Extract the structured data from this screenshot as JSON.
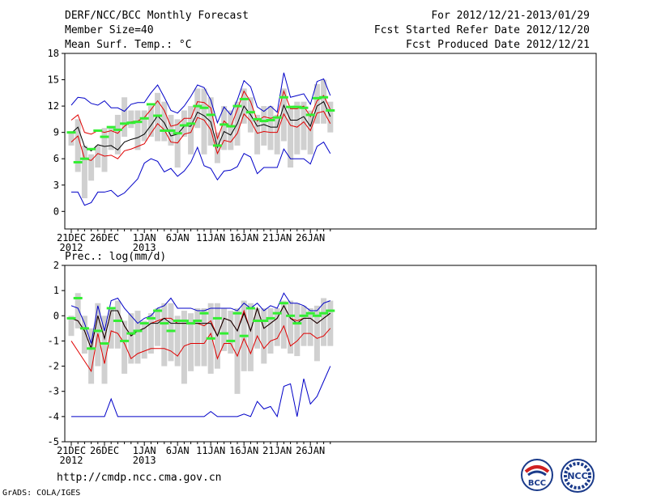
{
  "header": {
    "title": "DERF/NCC/BCC Monthly Forecast",
    "member_size": "Member Size=40",
    "variable": "Mean Surf. Temp.: °C",
    "period": "For 2012/12/21-2013/01/29",
    "started": "Fcst Started Refer Date 2012/12/20",
    "produced": "Fcst Produced Date 2012/12/21"
  },
  "footer": {
    "url": "http://cmdp.ncc.cma.gov.cn",
    "credit": "GrADS: COLA/IGES",
    "logo_left_text": "BCC",
    "logo_right_text": "NCC"
  },
  "colors": {
    "box": "#d0d0d0",
    "ensemble_mean": "#000000",
    "spread": "#e00000",
    "extremes": "#0000c8",
    "observed": "#33ee33"
  },
  "chart_data": [
    {
      "type": "box-whisker-line",
      "title": "Mean Surf. Temp.: °C",
      "x_ticks": [
        {
          "day": 0,
          "label": "21DEC",
          "sub": "2012"
        },
        {
          "day": 5,
          "label": "26DEC",
          "sub": ""
        },
        {
          "day": 11,
          "label": "1JAN",
          "sub": "2013"
        },
        {
          "day": 16,
          "label": "6JAN",
          "sub": ""
        },
        {
          "day": 21,
          "label": "11JAN",
          "sub": ""
        },
        {
          "day": 26,
          "label": "16JAN",
          "sub": ""
        },
        {
          "day": 31,
          "label": "21JAN",
          "sub": ""
        },
        {
          "day": 36,
          "label": "26JAN",
          "sub": ""
        }
      ],
      "ylim": [
        -2,
        18
      ],
      "y_ticks": [
        0,
        3,
        6,
        9,
        12,
        15,
        18
      ],
      "max": [
        12.1,
        13.0,
        12.9,
        12.3,
        12.1,
        12.6,
        11.8,
        11.8,
        11.4,
        12.2,
        12.4,
        12.4,
        13.5,
        14.4,
        13.0,
        11.5,
        11.2,
        12.0,
        13.1,
        14.4,
        14.1,
        12.7,
        10.1,
        11.9,
        11.0,
        12.7,
        14.9,
        14.2,
        11.9,
        11.4,
        12.0,
        11.3,
        15.8,
        13.0,
        13.2,
        13.4,
        12.2,
        14.8,
        15.1,
        13.2
      ],
      "upper": [
        10.4,
        11.0,
        9.0,
        8.8,
        9.2,
        9.0,
        9.2,
        8.9,
        9.7,
        10.2,
        10.3,
        10.7,
        11.6,
        12.6,
        11.5,
        9.7,
        9.9,
        10.6,
        10.6,
        12.5,
        12.4,
        11.8,
        8.3,
        10.3,
        9.6,
        11.6,
        13.7,
        12.5,
        10.3,
        10.8,
        10.6,
        10.8,
        13.7,
        11.7,
        11.7,
        12.0,
        10.8,
        12.6,
        13.2,
        11.6
      ],
      "mean": [
        8.9,
        9.6,
        7.4,
        6.9,
        7.6,
        7.4,
        7.5,
        7.0,
        7.9,
        8.2,
        8.4,
        8.8,
        9.8,
        10.9,
        10.1,
        8.6,
        8.8,
        9.7,
        9.7,
        11.3,
        10.9,
        10.2,
        7.3,
        9.1,
        8.7,
        10.0,
        12.0,
        11.0,
        9.7,
        9.9,
        9.6,
        9.6,
        12.1,
        10.4,
        10.4,
        10.8,
        9.7,
        12.0,
        12.5,
        10.8
      ],
      "lower": [
        7.9,
        8.6,
        6.0,
        5.8,
        6.6,
        6.3,
        6.4,
        6.0,
        6.9,
        7.1,
        7.4,
        7.7,
        8.9,
        10.0,
        9.3,
        7.9,
        7.8,
        8.8,
        9.0,
        10.7,
        10.4,
        9.3,
        6.6,
        8.1,
        7.9,
        8.9,
        11.1,
        10.3,
        8.9,
        9.1,
        9.0,
        9.0,
        11.1,
        9.8,
        9.6,
        10.2,
        9.2,
        11.2,
        11.4,
        10.0
      ],
      "min": [
        2.2,
        2.2,
        0.7,
        1.0,
        2.2,
        2.2,
        2.4,
        1.7,
        2.1,
        2.9,
        3.7,
        5.5,
        6.0,
        5.7,
        4.5,
        4.9,
        4.0,
        4.6,
        5.6,
        7.3,
        5.2,
        4.9,
        3.6,
        4.6,
        4.7,
        5.1,
        6.6,
        6.2,
        4.3,
        5.0,
        5.0,
        5.0,
        7.1,
        6.0,
        6.0,
        6.0,
        5.4,
        7.4,
        7.9,
        6.6
      ],
      "box_high": [
        9.0,
        10.5,
        7.5,
        6.5,
        7.5,
        9.5,
        9.5,
        11.0,
        13.0,
        11.5,
        11.5,
        11.5,
        12.0,
        13.5,
        12.5,
        11.0,
        10.5,
        11.5,
        12.0,
        14.0,
        14.0,
        13.0,
        9.0,
        12.0,
        11.5,
        12.5,
        14.0,
        13.0,
        11.0,
        12.0,
        12.0,
        11.0,
        14.0,
        12.0,
        12.5,
        12.5,
        11.5,
        14.5,
        15.0,
        12.5
      ],
      "box_low": [
        7.5,
        4.5,
        1.5,
        3.5,
        5.0,
        4.5,
        7.0,
        6.5,
        8.5,
        9.5,
        7.0,
        8.0,
        8.5,
        8.0,
        8.0,
        7.5,
        5.0,
        8.5,
        6.5,
        9.5,
        6.5,
        7.5,
        5.5,
        7.0,
        7.0,
        7.5,
        10.0,
        9.0,
        6.5,
        7.5,
        7.0,
        6.5,
        8.0,
        5.0,
        6.5,
        7.0,
        6.5,
        10.0,
        10.0,
        9.0
      ],
      "observed": [
        9.0,
        5.6,
        6.0,
        7.1,
        9.2,
        8.5,
        9.6,
        9.3,
        10.0,
        10.1,
        10.2,
        10.6,
        12.2,
        10.9,
        9.2,
        9.2,
        8.9,
        9.8,
        10.0,
        12.0,
        11.8,
        11.0,
        7.5,
        9.9,
        9.7,
        12.0,
        12.8,
        11.3,
        10.5,
        10.3,
        10.4,
        10.7,
        13.0,
        11.9,
        11.9,
        11.8,
        11.0,
        12.9,
        13.0,
        11.5
      ]
    },
    {
      "type": "box-whisker-line",
      "title": "Prec.: log(mm/d)",
      "x_ticks": [
        {
          "day": 0,
          "label": "21DEC",
          "sub": "2012"
        },
        {
          "day": 5,
          "label": "26DEC",
          "sub": ""
        },
        {
          "day": 11,
          "label": "1JAN",
          "sub": "2013"
        },
        {
          "day": 16,
          "label": "6JAN",
          "sub": ""
        },
        {
          "day": 21,
          "label": "11JAN",
          "sub": ""
        },
        {
          "day": 26,
          "label": "16JAN",
          "sub": ""
        },
        {
          "day": 31,
          "label": "21JAN",
          "sub": ""
        },
        {
          "day": 36,
          "label": "26JAN",
          "sub": ""
        }
      ],
      "ylim": [
        -5,
        2
      ],
      "y_ticks": [
        -5,
        -4,
        -3,
        -2,
        -1,
        0,
        1,
        2
      ],
      "max": [
        0.4,
        0.3,
        -0.3,
        -1.1,
        0.4,
        -0.6,
        0.6,
        0.7,
        0.3,
        0.0,
        -0.3,
        -0.1,
        0.0,
        0.3,
        0.4,
        0.7,
        0.3,
        0.3,
        0.3,
        0.2,
        0.2,
        0.3,
        0.3,
        0.3,
        0.3,
        0.2,
        0.5,
        0.3,
        0.5,
        0.2,
        0.4,
        0.3,
        0.9,
        0.5,
        0.5,
        0.4,
        0.2,
        0.2,
        0.5,
        0.6
      ],
      "upper": [
        -0.1,
        -0.2,
        -0.6,
        -1.3,
        0.0,
        -0.9,
        0.2,
        0.2,
        -0.4,
        -0.8,
        -0.6,
        -0.5,
        -0.3,
        -0.2,
        -0.1,
        -0.1,
        -0.3,
        -0.3,
        -0.3,
        -0.3,
        -0.4,
        -0.2,
        -0.8,
        -0.1,
        -0.2,
        -0.6,
        0.2,
        -0.6,
        0.3,
        -0.5,
        -0.3,
        -0.1,
        0.4,
        -0.1,
        -0.2,
        -0.1,
        -0.1,
        -0.3,
        -0.1,
        0.1
      ],
      "mean": [
        -0.1,
        -0.2,
        -0.6,
        -1.3,
        0.0,
        -0.9,
        0.2,
        0.2,
        -0.4,
        -0.8,
        -0.6,
        -0.5,
        -0.3,
        -0.3,
        -0.1,
        -0.3,
        -0.3,
        -0.3,
        -0.3,
        -0.3,
        -0.3,
        -0.3,
        -0.8,
        -0.1,
        -0.2,
        -0.6,
        0.1,
        -0.6,
        0.3,
        -0.5,
        -0.3,
        -0.1,
        0.4,
        -0.1,
        -0.3,
        -0.1,
        -0.1,
        -0.3,
        -0.1,
        0.1
      ],
      "lower": [
        -1.0,
        -1.4,
        -1.8,
        -2.2,
        -0.7,
        -1.9,
        -0.6,
        -0.7,
        -1.1,
        -1.7,
        -1.5,
        -1.4,
        -1.3,
        -1.3,
        -1.3,
        -1.4,
        -1.6,
        -1.2,
        -1.1,
        -1.1,
        -1.1,
        -0.7,
        -1.7,
        -1.1,
        -1.1,
        -1.6,
        -0.9,
        -1.5,
        -0.8,
        -1.3,
        -1.0,
        -0.9,
        -0.4,
        -1.2,
        -1.0,
        -0.7,
        -0.7,
        -0.9,
        -0.8,
        -0.5
      ],
      "min": [
        -4.0,
        -4.0,
        -4.0,
        -4.0,
        -4.0,
        -4.0,
        -3.3,
        -4.0,
        -4.0,
        -4.0,
        -4.0,
        -4.0,
        -4.0,
        -4.0,
        -4.0,
        -4.0,
        -4.0,
        -4.0,
        -4.0,
        -4.0,
        -4.0,
        -3.8,
        -4.0,
        -4.0,
        -4.0,
        -4.0,
        -3.9,
        -4.0,
        -3.4,
        -3.7,
        -3.6,
        -4.0,
        -2.8,
        -2.7,
        -4.0,
        -2.5,
        -3.5,
        -3.2,
        -2.6,
        -2.0
      ],
      "box_high": [
        -0.0,
        0.9,
        0.0,
        -0.5,
        0.5,
        0.0,
        0.3,
        0.6,
        -0.2,
        0.1,
        0.2,
        -0.2,
        0.1,
        0.3,
        0.5,
        0.5,
        0.0,
        0.2,
        0.1,
        0.3,
        0.3,
        0.5,
        0.5,
        0.3,
        0.2,
        0.3,
        0.6,
        0.5,
        0.3,
        0.3,
        0.3,
        0.3,
        0.6,
        0.6,
        0.5,
        0.4,
        0.3,
        0.4,
        0.7,
        0.6
      ],
      "box_low": [
        -0.8,
        -0.5,
        -1.5,
        -2.7,
        -2.0,
        -2.7,
        -1.3,
        -1.3,
        -2.3,
        -1.9,
        -1.9,
        -1.7,
        -1.5,
        -1.2,
        -2.0,
        -1.8,
        -2.0,
        -2.7,
        -2.2,
        -2.0,
        -2.0,
        -2.3,
        -2.1,
        -1.4,
        -1.5,
        -3.1,
        -2.2,
        -2.2,
        -1.3,
        -1.9,
        -1.5,
        -1.2,
        -1.3,
        -1.5,
        -1.6,
        -1.2,
        -1.2,
        -1.8,
        -1.2,
        -1.2
      ],
      "observed": [
        -0.1,
        0.7,
        -0.5,
        -1.3,
        -0.6,
        -1.1,
        0.3,
        -0.2,
        -1.0,
        -0.7,
        -0.6,
        -0.3,
        -0.1,
        0.2,
        -0.3,
        -0.6,
        -0.2,
        -0.2,
        -0.3,
        -0.2,
        0.1,
        -0.9,
        -0.1,
        -0.7,
        -1.0,
        0.1,
        -0.8,
        0.3,
        -0.2,
        -0.2,
        -0.1,
        0.1,
        0.5,
        0.0,
        -0.3,
        0.0,
        0.1,
        0.0,
        0.1,
        0.2
      ]
    }
  ]
}
